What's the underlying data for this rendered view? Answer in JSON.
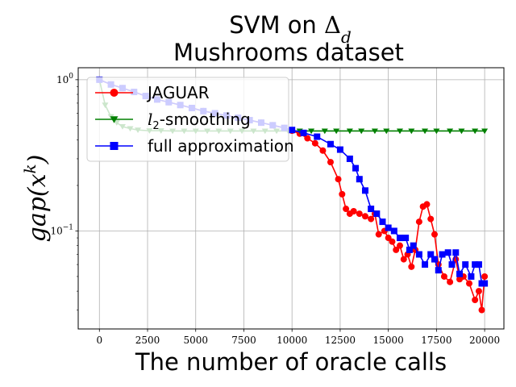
{
  "chart_data": {
    "type": "line",
    "title": "SVM on Δ_d",
    "title_main": "SVM on ",
    "title_symbol": "Δ",
    "title_subscript": "d",
    "subtitle": "Mushrooms dataset",
    "xlabel": "The number of oracle calls",
    "ylabel": "gap(x^k)",
    "ylabel_main": "gap(x",
    "ylabel_superscript": "k",
    "ylabel_close": ")",
    "x_scale": "linear",
    "y_scale": "log",
    "xlim": [
      -1100,
      21000
    ],
    "ylim": [
      0.0225,
      1.2
    ],
    "x_ticks": [
      0,
      2500,
      5000,
      7500,
      10000,
      12500,
      15000,
      17500,
      20000
    ],
    "x_tick_labels": [
      "0",
      "2500",
      "5000",
      "7500",
      "10000",
      "12500",
      "15000",
      "17500",
      "20000"
    ],
    "y_ticks": [
      1,
      0.1
    ],
    "y_tick_labels": [
      "10^0",
      "10^-1"
    ],
    "grid": true,
    "legend_position": "top-left",
    "series": [
      {
        "name": "JAGUAR",
        "color": "#ff0000",
        "marker": "circle",
        "x": [
          0,
          600,
          1200,
          1800,
          2400,
          3000,
          3600,
          4200,
          4800,
          5400,
          6000,
          6600,
          7200,
          7800,
          8400,
          9000,
          9600,
          10000,
          10400,
          10800,
          11200,
          11600,
          12000,
          12400,
          12600,
          12800,
          13000,
          13200,
          13500,
          13800,
          14100,
          14300,
          14500,
          14800,
          15000,
          15200,
          15400,
          15600,
          15800,
          16000,
          16200,
          16400,
          16600,
          16800,
          17000,
          17200,
          17400,
          17600,
          17900,
          18200,
          18500,
          18700,
          18900,
          19200,
          19500,
          19700,
          19850,
          20000
        ],
        "y": [
          1.0,
          0.93,
          0.88,
          0.83,
          0.78,
          0.74,
          0.71,
          0.68,
          0.65,
          0.62,
          0.6,
          0.58,
          0.56,
          0.54,
          0.52,
          0.5,
          0.48,
          0.46,
          0.44,
          0.41,
          0.38,
          0.34,
          0.285,
          0.22,
          0.175,
          0.14,
          0.13,
          0.135,
          0.13,
          0.125,
          0.12,
          0.13,
          0.095,
          0.1,
          0.09,
          0.085,
          0.075,
          0.08,
          0.065,
          0.07,
          0.058,
          0.075,
          0.115,
          0.145,
          0.15,
          0.12,
          0.095,
          0.06,
          0.05,
          0.046,
          0.065,
          0.048,
          0.05,
          0.045,
          0.035,
          0.04,
          0.03,
          0.05
        ]
      },
      {
        "name": "l_2-smoothing",
        "color": "#008000",
        "marker": "triangle-down",
        "x": [
          0,
          300,
          600,
          900,
          1200,
          1600,
          2000,
          2600,
          3200,
          3800,
          4400,
          5000,
          5600,
          6200,
          6800,
          7400,
          8000,
          8600,
          9200,
          9800,
          10400,
          11000,
          11700,
          12300,
          13000,
          13600,
          14300,
          14900,
          15600,
          16200,
          16900,
          17500,
          18200,
          18800,
          19500,
          20000
        ],
        "y": [
          1.0,
          0.68,
          0.57,
          0.52,
          0.49,
          0.475,
          0.465,
          0.46,
          0.46,
          0.458,
          0.458,
          0.458,
          0.458,
          0.458,
          0.458,
          0.458,
          0.458,
          0.458,
          0.458,
          0.458,
          0.458,
          0.458,
          0.458,
          0.458,
          0.458,
          0.458,
          0.458,
          0.458,
          0.458,
          0.458,
          0.458,
          0.458,
          0.458,
          0.458,
          0.458,
          0.458
        ]
      },
      {
        "name": "full approximation",
        "color": "#0000ff",
        "marker": "square",
        "x": [
          0,
          600,
          1200,
          1800,
          2400,
          3000,
          3600,
          4200,
          4800,
          5400,
          6000,
          6600,
          7200,
          7800,
          8400,
          9000,
          9600,
          10000,
          10600,
          11300,
          12000,
          12500,
          13000,
          13300,
          13500,
          13800,
          14100,
          14400,
          14700,
          15000,
          15300,
          15600,
          15900,
          16100,
          16300,
          16600,
          16900,
          17200,
          17400,
          17600,
          17800,
          18100,
          18300,
          18500,
          18700,
          19000,
          19300,
          19500,
          19700,
          19850,
          20000
        ],
        "y": [
          1.0,
          0.93,
          0.88,
          0.83,
          0.78,
          0.74,
          0.71,
          0.68,
          0.65,
          0.62,
          0.6,
          0.58,
          0.56,
          0.54,
          0.52,
          0.5,
          0.48,
          0.465,
          0.445,
          0.42,
          0.375,
          0.345,
          0.3,
          0.26,
          0.22,
          0.185,
          0.14,
          0.13,
          0.115,
          0.105,
          0.1,
          0.09,
          0.09,
          0.075,
          0.08,
          0.07,
          0.06,
          0.07,
          0.065,
          0.055,
          0.07,
          0.072,
          0.06,
          0.072,
          0.052,
          0.06,
          0.05,
          0.06,
          0.06,
          0.045,
          0.045
        ]
      }
    ]
  }
}
